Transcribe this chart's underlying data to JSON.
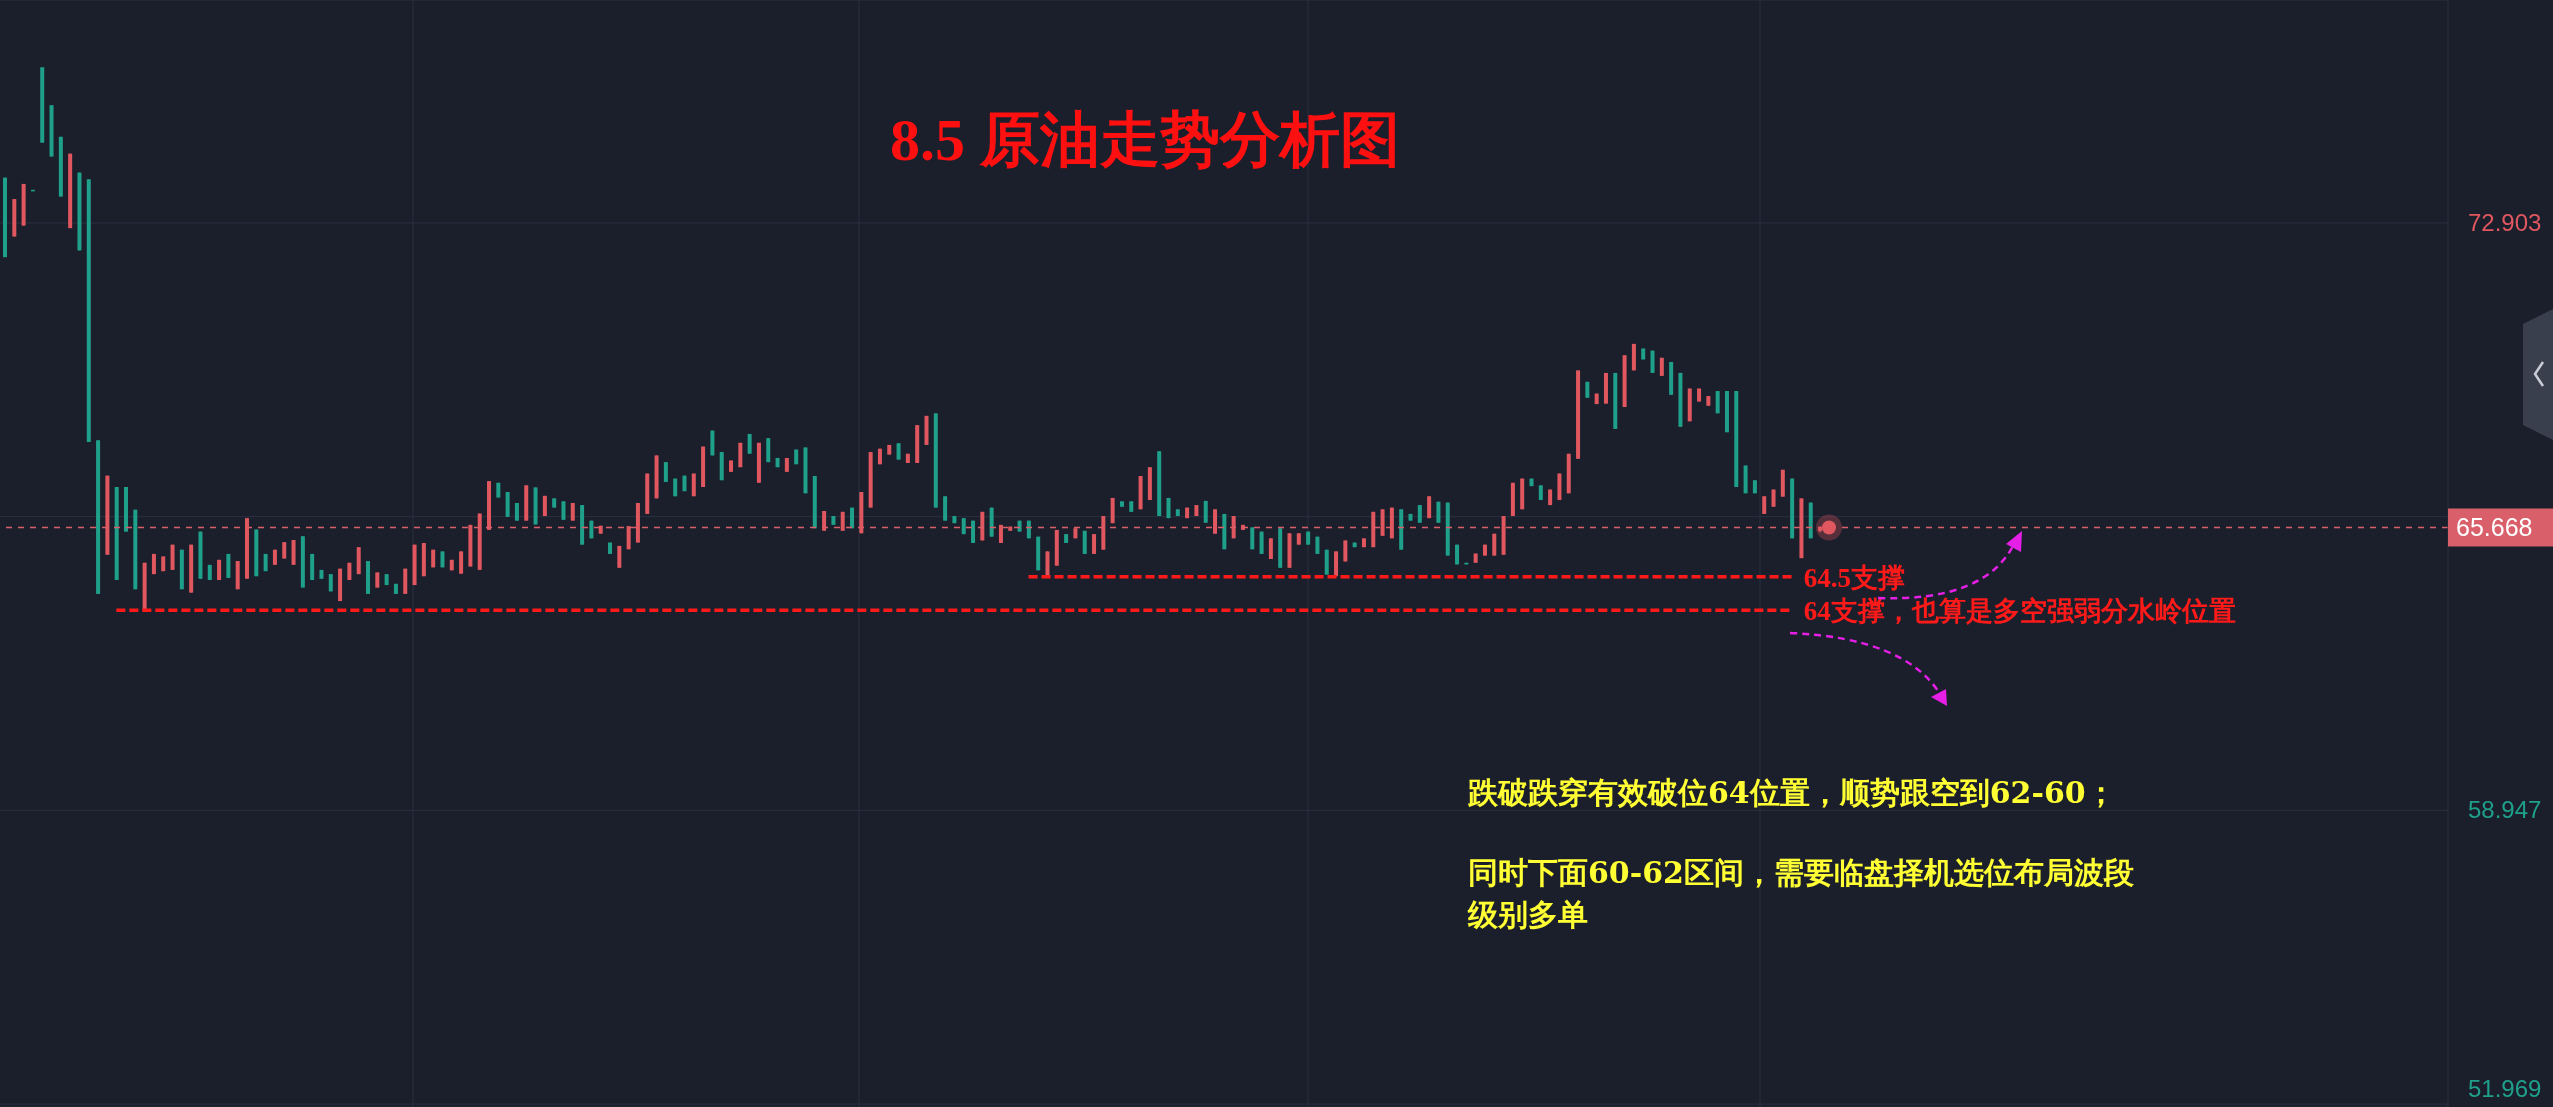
{
  "chart_data": {
    "type": "candlestick",
    "title": "8.5 原油走势分析图",
    "categories": [
      null,
      null,
      null,
      null,
      null,
      null,
      null,
      null,
      null,
      null,
      null,
      null,
      null,
      null,
      null,
      null,
      null,
      null,
      null,
      null,
      null,
      null,
      null,
      null,
      null,
      null,
      null,
      null,
      null,
      null,
      null,
      null,
      null,
      null,
      null,
      null,
      null,
      null,
      null,
      null,
      null,
      null,
      null,
      null,
      null,
      null,
      null,
      null,
      null,
      null,
      null,
      null,
      null,
      null,
      null,
      null,
      null,
      null,
      null,
      null,
      null,
      null,
      null,
      null,
      null,
      null,
      null,
      null,
      null,
      null,
      null,
      null,
      null,
      null,
      null,
      null,
      null,
      null,
      null,
      null,
      null,
      null,
      null,
      null,
      null,
      null,
      null,
      null,
      null,
      null,
      null,
      null,
      null,
      null,
      null,
      null,
      null,
      null,
      null,
      null,
      null,
      null,
      null,
      null,
      null,
      null,
      null,
      null,
      null,
      null,
      null,
      null,
      null,
      null,
      null,
      null,
      null,
      null,
      null,
      null,
      null,
      null,
      null,
      null,
      null,
      null,
      null,
      null,
      null,
      null,
      null,
      null,
      null,
      null,
      null,
      null,
      null,
      null,
      null,
      null,
      null,
      null,
      null,
      null,
      null,
      null,
      null,
      null,
      null,
      null,
      null,
      null,
      null,
      null,
      null,
      null,
      null,
      null,
      null,
      null,
      null,
      null,
      null,
      null,
      null,
      null,
      null,
      null,
      null,
      null,
      null,
      null,
      null,
      null,
      null,
      null,
      null,
      null,
      null,
      null,
      null,
      null,
      null,
      null,
      null,
      null,
      null,
      null,
      null,
      null,
      null,
      null,
      null,
      null,
      null,
      null,
      null,
      null,
      null,
      null,
      null,
      null,
      null,
      null,
      null,
      null,
      null,
      null,
      null,
      null,
      null,
      null,
      null,
      null,
      null,
      null,
      null,
      null,
      null,
      null,
      null,
      null,
      null,
      null,
      null,
      null,
      null,
      null,
      null,
      null,
      null,
      null,
      null,
      null,
      null,
      null,
      null,
      null,
      null,
      null,
      null,
      null,
      null,
      null,
      null,
      null,
      null,
      null,
      null,
      null,
      null,
      null,
      null,
      null,
      null,
      null,
      null,
      null,
      null,
      null,
      null,
      null,
      null
    ],
    "ohlc": [
      [
        73.98,
        73.98,
        72.09,
        72.09
      ],
      [
        72.58,
        73.47,
        72.58,
        73.47
      ],
      [
        72.84,
        73.83,
        72.84,
        73.83
      ],
      [
        73.69,
        73.69,
        73.66,
        73.66
      ],
      [
        76.6,
        76.6,
        74.81,
        74.81
      ],
      [
        75.7,
        75.7,
        74.48,
        74.48
      ],
      [
        74.95,
        74.95,
        73.53,
        73.53
      ],
      [
        72.78,
        74.55,
        72.78,
        74.55
      ],
      [
        74.1,
        74.1,
        72.25,
        72.25
      ],
      [
        73.94,
        73.94,
        67.7,
        67.7
      ],
      [
        67.74,
        67.74,
        64.09,
        64.09
      ],
      [
        65.02,
        66.9,
        65.02,
        66.9
      ],
      [
        66.63,
        66.63,
        64.42,
        64.42
      ],
      [
        66.63,
        66.63,
        65.57,
        65.57
      ],
      [
        66.09,
        66.09,
        64.2,
        64.2
      ],
      [
        63.7,
        64.83,
        63.7,
        64.83
      ],
      [
        64.56,
        65.04,
        64.56,
        65.04
      ],
      [
        64.63,
        64.98,
        64.63,
        64.98
      ],
      [
        64.66,
        65.26,
        64.66,
        65.26
      ],
      [
        65.14,
        65.14,
        64.2,
        64.2
      ],
      [
        64.12,
        65.26,
        64.12,
        65.26
      ],
      [
        65.57,
        65.57,
        64.45,
        64.45
      ],
      [
        64.78,
        64.78,
        64.42,
        64.42
      ],
      [
        64.42,
        64.9,
        64.42,
        64.9
      ],
      [
        65.04,
        65.04,
        64.47,
        64.47
      ],
      [
        64.2,
        64.87,
        64.2,
        64.87
      ],
      [
        64.45,
        65.89,
        64.45,
        65.89
      ],
      [
        65.62,
        65.62,
        64.51,
        64.51
      ],
      [
        65.04,
        65.04,
        64.63,
        64.63
      ],
      [
        64.78,
        65.14,
        64.78,
        65.14
      ],
      [
        64.93,
        65.32,
        64.93,
        65.32
      ],
      [
        64.78,
        65.37,
        64.78,
        65.37
      ],
      [
        65.46,
        65.46,
        64.24,
        64.24
      ],
      [
        65.04,
        65.04,
        64.42,
        64.42
      ],
      [
        64.66,
        64.66,
        64.45,
        64.45
      ],
      [
        64.56,
        64.56,
        64.15,
        64.15
      ],
      [
        63.92,
        64.69,
        63.92,
        64.69
      ],
      [
        64.42,
        64.83,
        64.42,
        64.83
      ],
      [
        64.56,
        65.2,
        64.56,
        65.2
      ],
      [
        64.87,
        64.87,
        64.09,
        64.09
      ],
      [
        64.24,
        64.6,
        64.24,
        64.6
      ],
      [
        64.56,
        64.56,
        64.3,
        64.3
      ],
      [
        64.33,
        64.33,
        64.09,
        64.09
      ],
      [
        64.09,
        64.69,
        64.09,
        64.69
      ],
      [
        64.3,
        65.26,
        64.3,
        65.26
      ],
      [
        64.51,
        65.3,
        64.51,
        65.3
      ],
      [
        64.72,
        65.14,
        64.72,
        65.14
      ],
      [
        65.1,
        65.1,
        64.72,
        64.72
      ],
      [
        64.65,
        64.9,
        64.65,
        64.9
      ],
      [
        64.57,
        65.1,
        64.57,
        65.1
      ],
      [
        64.74,
        65.73,
        64.74,
        65.73
      ],
      [
        64.66,
        66.0,
        64.66,
        66.0
      ],
      [
        65.61,
        66.77,
        65.61,
        66.77
      ],
      [
        66.73,
        66.73,
        66.38,
        66.38
      ],
      [
        66.51,
        66.51,
        65.92,
        65.92
      ],
      [
        66.25,
        66.25,
        65.83,
        65.83
      ],
      [
        65.83,
        66.67,
        65.83,
        66.67
      ],
      [
        66.62,
        66.62,
        65.74,
        65.74
      ],
      [
        65.94,
        66.42,
        65.94,
        66.42
      ],
      [
        66.36,
        66.36,
        66.14,
        66.14
      ],
      [
        66.29,
        66.29,
        65.85,
        65.85
      ],
      [
        65.83,
        66.25,
        65.83,
        66.25
      ],
      [
        66.2,
        66.2,
        65.26,
        65.26
      ],
      [
        65.83,
        65.83,
        65.41,
        65.41
      ],
      [
        65.52,
        65.71,
        65.52,
        65.71
      ],
      [
        65.31,
        65.31,
        65.04,
        65.04
      ],
      [
        64.71,
        65.23,
        64.71,
        65.23
      ],
      [
        65.15,
        65.7,
        65.15,
        65.7
      ],
      [
        65.31,
        66.25,
        65.31,
        66.25
      ],
      [
        65.99,
        66.95,
        65.99,
        66.95
      ],
      [
        66.36,
        67.38,
        66.36,
        67.38
      ],
      [
        67.22,
        67.22,
        66.75,
        66.75
      ],
      [
        66.83,
        66.83,
        66.41,
        66.41
      ],
      [
        66.9,
        66.9,
        66.53,
        66.53
      ],
      [
        66.41,
        66.95,
        66.41,
        66.95
      ],
      [
        66.63,
        67.59,
        66.63,
        67.59
      ],
      [
        67.97,
        67.97,
        67.38,
        67.38
      ],
      [
        67.46,
        67.46,
        66.79,
        66.79
      ],
      [
        66.99,
        67.26,
        66.99,
        67.26
      ],
      [
        67.1,
        67.68,
        67.1,
        67.68
      ],
      [
        67.89,
        67.89,
        67.42,
        67.42
      ],
      [
        66.73,
        67.68,
        66.73,
        67.68
      ],
      [
        67.79,
        67.79,
        67.22,
        67.22
      ],
      [
        67.32,
        67.32,
        67.1,
        67.1
      ],
      [
        66.99,
        67.32,
        66.99,
        67.32
      ],
      [
        67.52,
        67.52,
        67.17,
        67.17
      ],
      [
        67.57,
        67.57,
        66.48,
        66.48
      ],
      [
        66.89,
        66.89,
        65.65,
        65.65
      ],
      [
        65.59,
        66.06,
        65.59,
        66.06
      ],
      [
        65.94,
        65.94,
        65.73,
        65.73
      ],
      [
        65.59,
        66.04,
        65.59,
        66.04
      ],
      [
        66.14,
        66.14,
        65.65,
        65.65
      ],
      [
        65.53,
        66.51,
        65.53,
        66.51
      ],
      [
        66.14,
        67.46,
        66.14,
        67.46
      ],
      [
        67.17,
        67.54,
        67.17,
        67.54
      ],
      [
        67.4,
        67.63,
        67.4,
        67.63
      ],
      [
        67.67,
        67.67,
        67.28,
        67.28
      ],
      [
        67.2,
        67.42,
        67.2,
        67.42
      ],
      [
        67.2,
        68.1,
        67.2,
        68.1
      ],
      [
        67.63,
        68.32,
        67.63,
        68.32
      ],
      [
        68.38,
        68.38,
        66.14,
        66.14
      ],
      [
        66.41,
        66.41,
        65.83,
        65.83
      ],
      [
        65.94,
        65.94,
        65.77,
        65.77
      ],
      [
        65.89,
        65.89,
        65.51,
        65.51
      ],
      [
        65.83,
        65.83,
        65.3,
        65.3
      ],
      [
        65.36,
        66.04,
        65.36,
        66.04
      ],
      [
        66.14,
        66.14,
        65.45,
        65.45
      ],
      [
        65.3,
        65.73,
        65.3,
        65.73
      ],
      [
        65.59,
        65.69,
        65.59,
        65.69
      ],
      [
        65.83,
        65.83,
        65.57,
        65.57
      ],
      [
        65.83,
        65.83,
        65.41,
        65.41
      ],
      [
        65.45,
        65.45,
        64.65,
        64.65
      ],
      [
        64.53,
        65.1,
        64.53,
        65.1
      ],
      [
        64.76,
        65.61,
        64.76,
        65.61
      ],
      [
        65.51,
        65.51,
        65.3,
        65.3
      ],
      [
        65.41,
        65.65,
        65.41,
        65.65
      ],
      [
        65.59,
        65.59,
        65.04,
        65.04
      ],
      [
        65.04,
        65.51,
        65.04,
        65.51
      ],
      [
        65.14,
        65.94,
        65.14,
        65.94
      ],
      [
        65.77,
        66.37,
        65.77,
        66.37
      ],
      [
        66.29,
        66.29,
        66.16,
        66.16
      ],
      [
        66.29,
        66.29,
        66.04,
        66.04
      ],
      [
        66.1,
        66.89,
        66.1,
        66.89
      ],
      [
        66.32,
        67.1,
        66.32,
        67.1
      ],
      [
        67.48,
        67.48,
        65.94,
        65.94
      ],
      [
        66.37,
        66.37,
        65.89,
        65.89
      ],
      [
        66.1,
        66.1,
        65.94,
        65.94
      ],
      [
        65.89,
        66.14,
        65.89,
        66.14
      ],
      [
        65.94,
        66.2,
        65.94,
        66.2
      ],
      [
        66.3,
        66.3,
        65.78,
        65.78
      ],
      [
        65.52,
        66.1,
        65.52,
        66.1
      ],
      [
        65.99,
        65.99,
        65.15,
        65.15
      ],
      [
        65.41,
        65.94,
        65.41,
        65.94
      ],
      [
        65.61,
        65.73,
        65.61,
        65.73
      ],
      [
        65.67,
        65.67,
        65.15,
        65.15
      ],
      [
        65.57,
        65.57,
        65.04,
        65.04
      ],
      [
        64.92,
        65.41,
        64.92,
        65.41
      ],
      [
        65.65,
        65.65,
        64.71,
        64.71
      ],
      [
        64.71,
        65.53,
        64.71,
        65.53
      ],
      [
        65.26,
        65.53,
        65.26,
        65.53
      ],
      [
        65.57,
        65.57,
        65.26,
        65.26
      ],
      [
        65.45,
        65.45,
        65.04,
        65.04
      ],
      [
        65.14,
        65.14,
        64.55,
        64.55
      ],
      [
        64.51,
        65.1,
        64.51,
        65.1
      ],
      [
        64.86,
        65.36,
        64.86,
        65.36
      ],
      [
        65.31,
        65.31,
        65.2,
        65.2
      ],
      [
        65.2,
        65.41,
        65.2,
        65.41
      ],
      [
        65.2,
        66.04,
        65.2,
        66.04
      ],
      [
        65.47,
        66.1,
        65.47,
        66.1
      ],
      [
        65.41,
        66.14,
        65.41,
        66.14
      ],
      [
        66.1,
        66.1,
        65.14,
        65.14
      ],
      [
        65.99,
        65.99,
        65.83,
        65.83
      ],
      [
        66.2,
        66.2,
        65.78,
        65.78
      ],
      [
        65.89,
        66.41,
        65.89,
        66.41
      ],
      [
        66.28,
        66.28,
        65.78,
        65.78
      ],
      [
        66.26,
        66.26,
        65.0,
        65.0
      ],
      [
        65.26,
        65.26,
        64.79,
        64.79
      ],
      [
        64.83,
        64.83,
        64.79,
        64.79
      ],
      [
        64.83,
        65.05,
        64.83,
        65.05
      ],
      [
        65.0,
        65.26,
        65.0,
        65.26
      ],
      [
        65.0,
        65.52,
        65.0,
        65.52
      ],
      [
        65.02,
        65.94,
        65.02,
        65.94
      ],
      [
        65.94,
        66.73,
        65.94,
        66.73
      ],
      [
        66.1,
        66.83,
        66.1,
        66.83
      ],
      [
        66.83,
        66.83,
        66.65,
        66.65
      ],
      [
        66.67,
        66.67,
        66.32,
        66.32
      ],
      [
        66.2,
        66.57,
        66.2,
        66.57
      ],
      [
        66.32,
        66.95,
        66.32,
        66.95
      ],
      [
        66.48,
        67.42,
        66.48,
        67.42
      ],
      [
        67.3,
        69.4,
        67.3,
        69.4
      ],
      [
        69.13,
        69.13,
        68.75,
        68.75
      ],
      [
        68.6,
        68.85,
        68.6,
        68.85
      ],
      [
        68.61,
        69.34,
        68.61,
        69.34
      ],
      [
        69.34,
        69.34,
        68.01,
        68.01
      ],
      [
        68.53,
        69.76,
        68.53,
        69.76
      ],
      [
        69.4,
        70.03,
        69.4,
        70.03
      ],
      [
        69.92,
        69.92,
        69.66,
        69.66
      ],
      [
        69.87,
        69.87,
        69.34,
        69.34
      ],
      [
        69.27,
        69.7,
        69.27,
        69.7
      ],
      [
        69.6,
        69.6,
        68.82,
        68.82
      ],
      [
        69.34,
        69.34,
        68.06,
        68.06
      ],
      [
        68.19,
        68.97,
        68.19,
        68.97
      ],
      [
        68.66,
        68.97,
        68.66,
        68.97
      ],
      [
        68.56,
        68.79,
        68.56,
        68.79
      ],
      [
        68.91,
        68.91,
        68.38,
        68.38
      ],
      [
        68.91,
        68.91,
        67.93,
        67.93
      ],
      [
        68.91,
        68.91,
        66.63,
        66.63
      ],
      [
        67.14,
        67.14,
        66.48,
        66.48
      ],
      [
        66.79,
        66.79,
        66.48,
        66.48
      ],
      [
        65.99,
        66.41,
        65.99,
        66.41
      ],
      [
        66.16,
        66.57,
        66.16,
        66.57
      ],
      [
        66.4,
        67.04,
        66.4,
        67.04
      ],
      [
        66.83,
        66.83,
        65.41,
        65.41
      ],
      [
        64.94,
        66.36,
        64.94,
        66.36
      ],
      [
        66.26,
        66.26,
        65.41,
        65.41
      ],
      [
        65.58,
        65.7,
        65.55,
        65.668
      ],
      null,
      null,
      null,
      null,
      null,
      null,
      null,
      null,
      null,
      null,
      null,
      null,
      null,
      null,
      null,
      null,
      null,
      null,
      null,
      null,
      null,
      null,
      null,
      null,
      null,
      null,
      null,
      null,
      null,
      null,
      null,
      null,
      null,
      null,
      null,
      null,
      null,
      null,
      null,
      null,
      null,
      null,
      null,
      null,
      null,
      null,
      null,
      null,
      null,
      null,
      null,
      null,
      null,
      null,
      null,
      null,
      null,
      null,
      null,
      null,
      null,
      null,
      null,
      null,
      null,
      null,
      null
    ],
    "ylim": [
      51.9,
      78.2
    ],
    "yticks": [
      72.903,
      {
        "value": 65.925,
        "label": null
      },
      58.947,
      51.969
    ],
    "grid": true,
    "tick_labels": "y",
    "ref_lines": [
      {
        "axis": "y",
        "value": 65.668,
        "label": "65.668",
        "color": "#d9606a",
        "line_style": "dashed"
      },
      {
        "axis": "y",
        "value": 64.5,
        "label": "64.5支撑",
        "color": "#ff1a1a",
        "line_style": "dashed"
      },
      {
        "axis": "y",
        "value": 63.7,
        "label": "64支撑，也算是多空强弱分水岭位置",
        "color": "#ff1a1a",
        "line_style": "dashed"
      }
    ],
    "annotations": [
      "跌破跌穿有效破位64位置，顺势跟空到62-60；",
      "同时下面60-62区间，需要临盘择机选位布局波段级别多单"
    ]
  }
}
